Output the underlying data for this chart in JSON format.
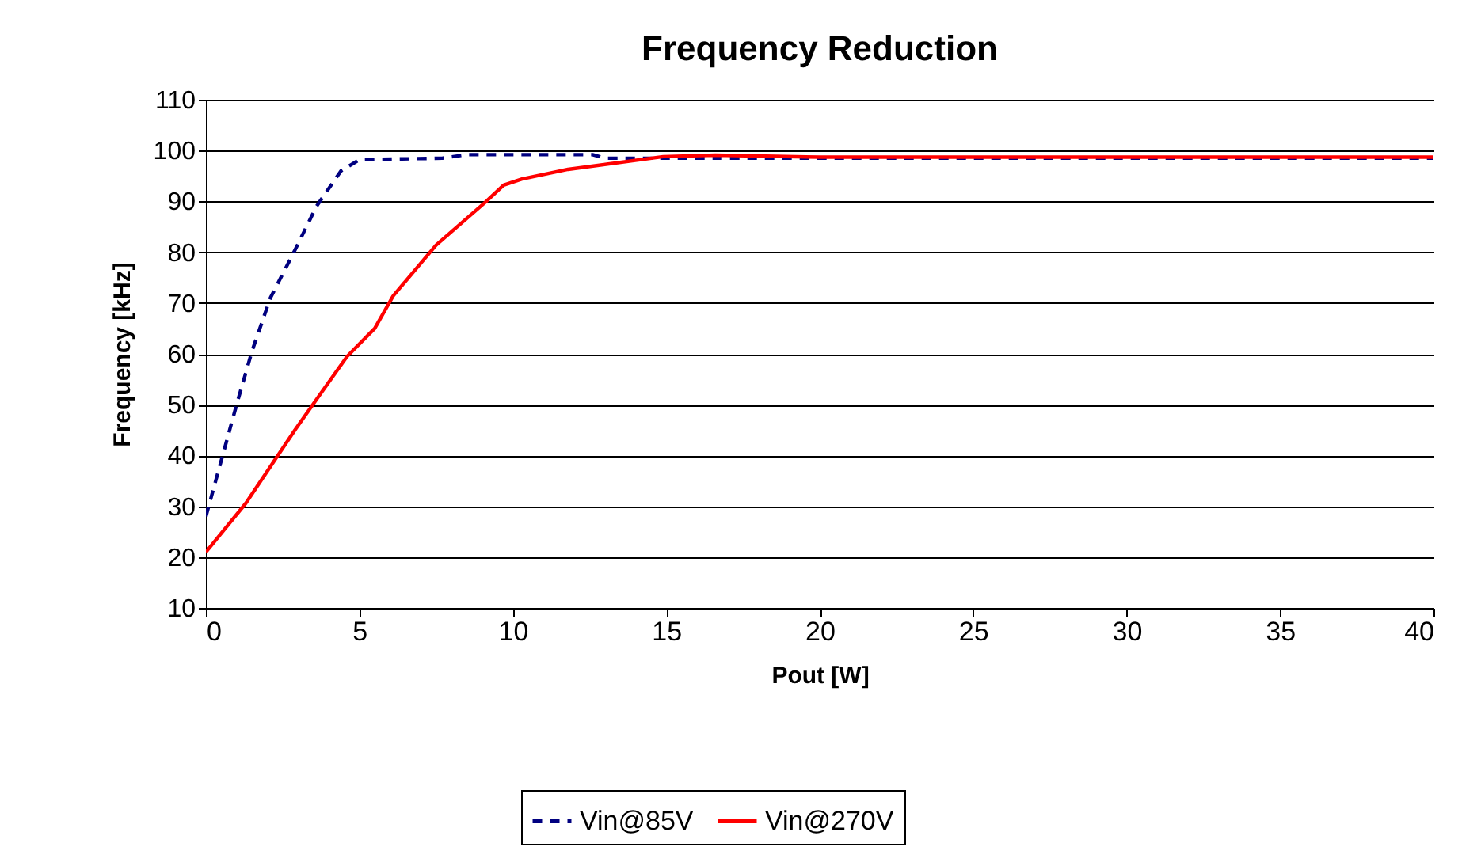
{
  "chart_data": {
    "type": "line",
    "title": "Frequency Reduction",
    "xlabel": "Pout [W]",
    "ylabel": "Frequency [kHz]",
    "xlim": [
      0,
      40
    ],
    "xticks": [
      0,
      5,
      10,
      15,
      20,
      25,
      30,
      35,
      40
    ],
    "ylim": [
      10,
      110
    ],
    "yticks": [
      10,
      20,
      30,
      40,
      50,
      60,
      70,
      80,
      90,
      100,
      110
    ],
    "grid": "y",
    "legend": "bottom",
    "marker": "none",
    "series": [
      {
        "name": "Vin@85V",
        "color": "#000080",
        "line_style": "dashed",
        "x": [
          0,
          1,
          1.5,
          2.1,
          2.9,
          3.6,
          4.4,
          5,
          7.7,
          8.5,
          12.6,
          13,
          20,
          40
        ],
        "values": [
          28,
          50,
          60.5,
          71,
          80.4,
          89,
          96,
          98.2,
          98.5,
          99.2,
          99.2,
          98.5,
          98.5,
          98.5
        ]
      },
      {
        "name": "Vin@270V",
        "color": "#ff0000",
        "line_style": "solid",
        "x": [
          0,
          1.3,
          2.9,
          3.6,
          4.6,
          5.5,
          6.1,
          7.5,
          9.1,
          9.7,
          10.3,
          11.8,
          14.9,
          16.6,
          20,
          40
        ],
        "values": [
          21,
          30.6,
          45,
          51,
          59.5,
          65,
          71.4,
          81.4,
          89.8,
          93.2,
          94.4,
          96.3,
          98.8,
          99.1,
          98.7,
          98.7
        ]
      }
    ]
  }
}
